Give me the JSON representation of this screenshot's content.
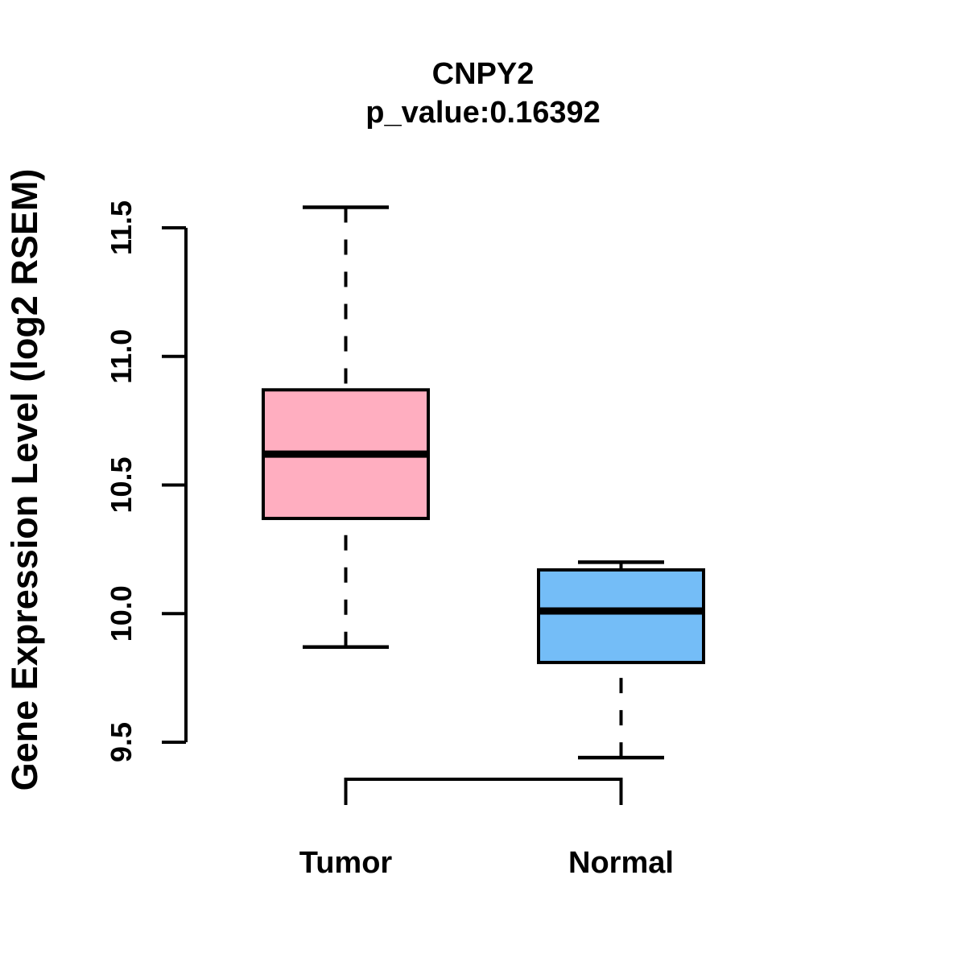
{
  "chart_data": {
    "type": "boxplot",
    "title": "CNPY2",
    "subtitle": "p_value:0.16392",
    "ylabel": "Gene Expression Level (log2 RSEM)",
    "xlabel": "",
    "ylim": [
      9.5,
      11.5
    ],
    "yticks": [
      9.5,
      10.0,
      10.5,
      11.0,
      11.5
    ],
    "ytick_labels": [
      "9.5",
      "10.0",
      "10.5",
      "11.0",
      "11.5"
    ],
    "categories": [
      "Tumor",
      "Normal"
    ],
    "series": [
      {
        "name": "Tumor",
        "color": "#FFAEC0",
        "whisker_low": 9.87,
        "q1": 10.37,
        "median": 10.62,
        "q3": 10.87,
        "whisker_high": 11.58
      },
      {
        "name": "Normal",
        "color": "#74BDF7",
        "whisker_low": 9.44,
        "q1": 9.81,
        "median": 10.01,
        "q3": 10.17,
        "whisker_high": 10.2
      }
    ],
    "legend": "none",
    "grid": false,
    "axis_color": "#000000",
    "median_color": "#000000",
    "whisker_style": "dashed"
  }
}
